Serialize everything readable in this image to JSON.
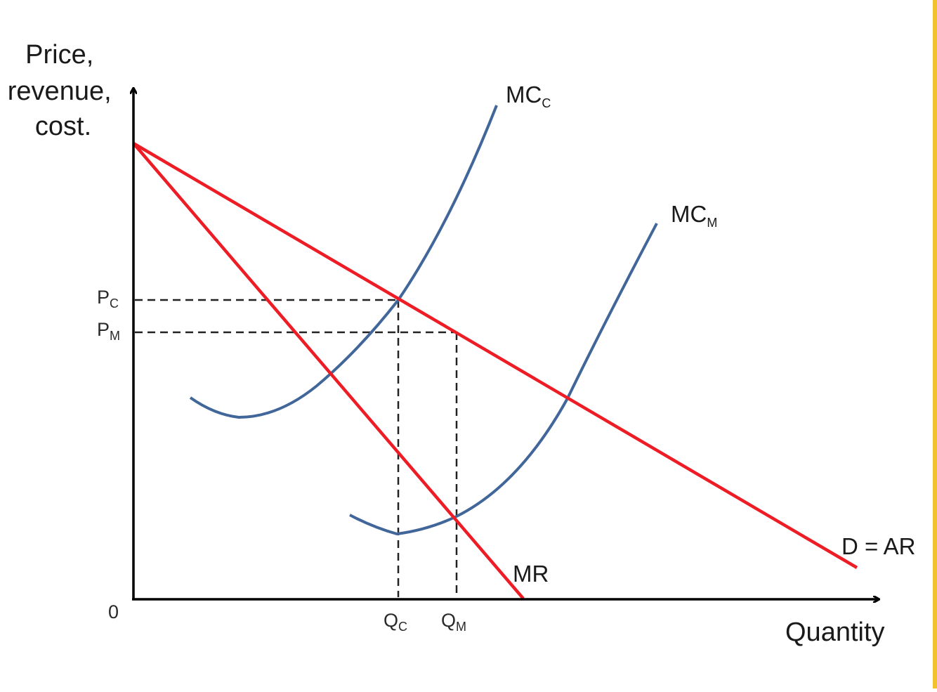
{
  "diagram": {
    "y_axis_title_lines": [
      "Price,",
      "revenue,",
      "cost."
    ],
    "x_axis_title": "Quantity",
    "origin_label": "0",
    "labels": {
      "mc_c": {
        "base": "MC",
        "sub": "C"
      },
      "mc_m": {
        "base": "MC",
        "sub": "M"
      },
      "demand": "D = AR",
      "mr": "MR",
      "p_c": {
        "base": "P",
        "sub": "C"
      },
      "p_m": {
        "base": "P",
        "sub": "M"
      },
      "q_c": {
        "base": "Q",
        "sub": "C"
      },
      "q_m": {
        "base": "Q",
        "sub": "M"
      }
    },
    "colors": {
      "revenue_lines": "#ee1c25",
      "cost_curves": "#41669a",
      "axes": "#000000",
      "guides": "#222222",
      "edge_accent": "#f2c12e"
    }
  }
}
